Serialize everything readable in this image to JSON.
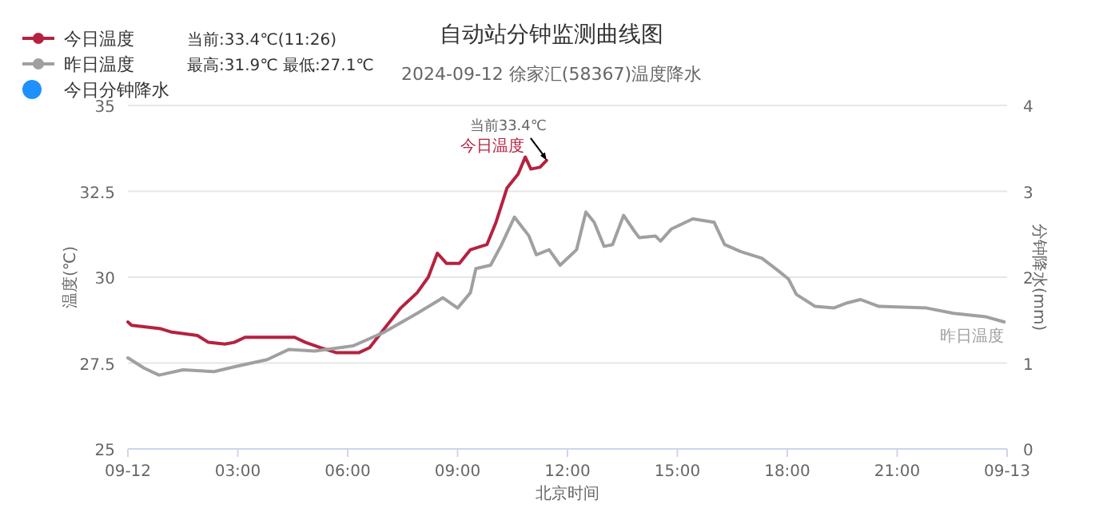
{
  "chart_data": {
    "type": "line",
    "title": "自动站分钟监测曲线图",
    "subtitle": "2024-09-12 徐家汇(58367)温度降水",
    "xlabel": "北京时间",
    "ylabel": "温度(℃)",
    "y2label": "分钟降水(mm)",
    "annotations": [
      "当前:33.4℃(11:26)",
      "最高:31.9℃ 最低:27.1℃",
      {
        "text": "当前33.4℃",
        "x": 11.43,
        "y": 33.4
      }
    ],
    "xlim": [
      0,
      24
    ],
    "xticks": [
      {
        "value": 0,
        "label": "09-12"
      },
      {
        "value": 3,
        "label": "03:00"
      },
      {
        "value": 6,
        "label": "06:00"
      },
      {
        "value": 9,
        "label": "09:00"
      },
      {
        "value": 12,
        "label": "12:00"
      },
      {
        "value": 15,
        "label": "15:00"
      },
      {
        "value": 18,
        "label": "18:00"
      },
      {
        "value": 21,
        "label": "21:00"
      },
      {
        "value": 24,
        "label": "09-13"
      }
    ],
    "ylim": [
      25,
      35
    ],
    "yticks": [
      25,
      27.5,
      30,
      32.5,
      35
    ],
    "y2lim": [
      0,
      4
    ],
    "y2ticks": [
      0,
      1,
      2,
      3,
      4
    ],
    "grid": "y",
    "legend": "top left",
    "series": [
      {
        "name": "今日温度",
        "color": "#b5223f",
        "x": [
          0,
          0.1,
          0.9,
          1.2,
          1.9,
          2.2,
          2.65,
          2.9,
          3.2,
          4.55,
          4.85,
          5.25,
          5.7,
          6.3,
          6.6,
          7.0,
          7.45,
          7.9,
          8.2,
          8.45,
          8.7,
          9.05,
          9.35,
          9.8,
          10.05,
          10.35,
          10.65,
          10.85,
          11.0,
          11.25,
          11.43
        ],
        "values": [
          28.7,
          28.6,
          28.5,
          28.4,
          28.3,
          28.1,
          28.05,
          28.1,
          28.25,
          28.25,
          28.1,
          27.95,
          27.8,
          27.8,
          27.95,
          28.5,
          29.1,
          29.55,
          30.0,
          30.7,
          30.4,
          30.4,
          30.8,
          30.95,
          31.6,
          32.6,
          33.0,
          33.5,
          33.15,
          33.2,
          33.4
        ]
      },
      {
        "name": "昨日温度",
        "color": "#a0a0a0",
        "x": [
          0,
          0.45,
          0.85,
          1.5,
          2.35,
          2.95,
          3.8,
          4.4,
          5.1,
          6.15,
          7.0,
          7.9,
          8.6,
          9.0,
          9.35,
          9.5,
          9.9,
          10.2,
          10.55,
          10.95,
          11.15,
          11.5,
          11.8,
          12.25,
          12.5,
          12.73,
          13.0,
          13.23,
          13.53,
          13.82,
          13.96,
          14.4,
          14.54,
          14.83,
          15.42,
          16.0,
          16.29,
          16.72,
          17.31,
          17.74,
          18.03,
          18.25,
          18.76,
          19.27,
          19.63,
          20.0,
          20.5,
          21.8,
          22.54,
          23.4,
          23.92
        ],
        "values": [
          27.65,
          27.35,
          27.15,
          27.3,
          27.25,
          27.4,
          27.6,
          27.9,
          27.85,
          28.0,
          28.4,
          28.95,
          29.4,
          29.1,
          29.55,
          30.25,
          30.35,
          30.95,
          31.75,
          31.2,
          30.65,
          30.8,
          30.35,
          30.8,
          31.9,
          31.6,
          30.9,
          30.95,
          31.8,
          31.35,
          31.15,
          31.2,
          31.05,
          31.4,
          31.7,
          31.6,
          30.95,
          30.75,
          30.55,
          30.2,
          29.95,
          29.5,
          29.15,
          29.1,
          29.25,
          29.35,
          29.15,
          29.1,
          28.95,
          28.85,
          28.7
        ]
      },
      {
        "name": "今日分钟降水",
        "color": "#1e90ff",
        "type": "bar"
      }
    ]
  }
}
